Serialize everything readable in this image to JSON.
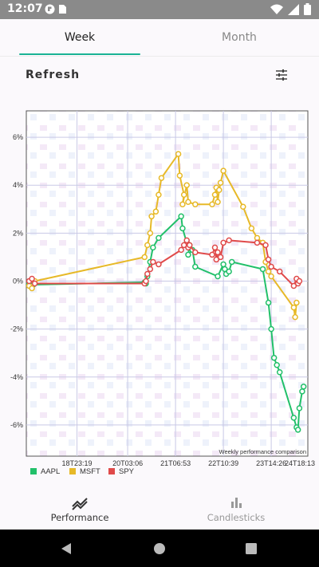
{
  "status": {
    "time": "12:07",
    "icons": [
      "notification-icon",
      "sim-icon",
      "wifi-icon",
      "signal-icon",
      "battery-icon"
    ]
  },
  "tabs": [
    {
      "label": "Week",
      "selected": true
    },
    {
      "label": "Month",
      "selected": false
    }
  ],
  "toolbar": {
    "refresh_label": "Refresh",
    "filter_icon": "tune-icon"
  },
  "chart_data": {
    "type": "line",
    "title": "",
    "annotation": "Weekly performance comparison",
    "xlabel": "",
    "ylabel": "",
    "y_ticks": [
      "6%",
      "4%",
      "2%",
      "0%",
      "-2%",
      "-4%",
      "-6%"
    ],
    "ylim": [
      -7.3,
      7.1
    ],
    "x_ticks": [
      {
        "label": "18T23:19",
        "t": 0.18
      },
      {
        "label": "20T03:06",
        "t": 0.36
      },
      {
        "label": "21T06:53",
        "t": 0.53
      },
      {
        "label": "22T10:39",
        "t": 0.7
      },
      {
        "label": "23T14:26",
        "t": 0.87
      },
      {
        "label": "24T18:13",
        "t": 1.04
      }
    ],
    "grid": true,
    "legend_position": "bottom-left",
    "series": [
      {
        "name": "AAPL",
        "color": "#22c06a",
        "points": [
          [
            0.01,
            -0.1
          ],
          [
            0.02,
            -0.2
          ],
          [
            0.025,
            -0.15
          ],
          [
            0.42,
            -0.05
          ],
          [
            0.425,
            -0.1
          ],
          [
            0.43,
            0.2
          ],
          [
            0.44,
            0.8
          ],
          [
            0.45,
            1.4
          ],
          [
            0.47,
            1.8
          ],
          [
            0.55,
            2.7
          ],
          [
            0.555,
            2.2
          ],
          [
            0.57,
            1.6
          ],
          [
            0.58,
            1.5
          ],
          [
            0.575,
            1.1
          ],
          [
            0.59,
            1.3
          ],
          [
            0.6,
            0.6
          ],
          [
            0.68,
            0.2
          ],
          [
            0.7,
            0.7
          ],
          [
            0.705,
            0.5
          ],
          [
            0.71,
            0.3
          ],
          [
            0.72,
            0.4
          ],
          [
            0.73,
            0.8
          ],
          [
            0.84,
            0.5
          ],
          [
            0.86,
            -0.9
          ],
          [
            0.87,
            -2.0
          ],
          [
            0.88,
            -3.2
          ],
          [
            0.89,
            -3.5
          ],
          [
            0.9,
            -3.8
          ],
          [
            0.95,
            -5.7
          ],
          [
            0.96,
            -6.1
          ],
          [
            0.965,
            -6.2
          ],
          [
            0.97,
            -5.3
          ],
          [
            0.98,
            -4.6
          ],
          [
            0.985,
            -4.4
          ]
        ]
      },
      {
        "name": "MSFT",
        "color": "#e7b928",
        "points": [
          [
            0.01,
            -0.2
          ],
          [
            0.02,
            -0.3
          ],
          [
            0.03,
            0.0
          ],
          [
            0.42,
            1.0
          ],
          [
            0.43,
            1.5
          ],
          [
            0.44,
            2.0
          ],
          [
            0.445,
            2.7
          ],
          [
            0.46,
            2.9
          ],
          [
            0.47,
            3.6
          ],
          [
            0.48,
            4.3
          ],
          [
            0.54,
            5.3
          ],
          [
            0.545,
            4.4
          ],
          [
            0.56,
            3.6
          ],
          [
            0.555,
            3.2
          ],
          [
            0.57,
            4.0
          ],
          [
            0.575,
            3.3
          ],
          [
            0.6,
            3.2
          ],
          [
            0.66,
            3.2
          ],
          [
            0.67,
            3.6
          ],
          [
            0.675,
            3.9
          ],
          [
            0.68,
            3.3
          ],
          [
            0.685,
            3.8
          ],
          [
            0.69,
            4.1
          ],
          [
            0.7,
            4.6
          ],
          [
            0.77,
            3.1
          ],
          [
            0.8,
            2.2
          ],
          [
            0.82,
            1.8
          ],
          [
            0.84,
            1.6
          ],
          [
            0.85,
            0.8
          ],
          [
            0.86,
            0.4
          ],
          [
            0.87,
            0.2
          ],
          [
            0.95,
            -1.1
          ],
          [
            0.955,
            -1.5
          ],
          [
            0.96,
            -0.9
          ]
        ]
      },
      {
        "name": "SPY",
        "color": "#e04a4a",
        "points": [
          [
            0.01,
            0.0
          ],
          [
            0.02,
            0.1
          ],
          [
            0.03,
            -0.1
          ],
          [
            0.42,
            -0.1
          ],
          [
            0.425,
            0.0
          ],
          [
            0.43,
            0.3
          ],
          [
            0.44,
            0.5
          ],
          [
            0.45,
            0.8
          ],
          [
            0.47,
            0.7
          ],
          [
            0.55,
            1.3
          ],
          [
            0.56,
            1.5
          ],
          [
            0.57,
            1.7
          ],
          [
            0.575,
            1.4
          ],
          [
            0.58,
            1.5
          ],
          [
            0.6,
            1.2
          ],
          [
            0.66,
            1.1
          ],
          [
            0.67,
            1.4
          ],
          [
            0.675,
            0.9
          ],
          [
            0.68,
            1.2
          ],
          [
            0.69,
            1.0
          ],
          [
            0.7,
            1.6
          ],
          [
            0.72,
            1.7
          ],
          [
            0.82,
            1.6
          ],
          [
            0.85,
            1.5
          ],
          [
            0.86,
            0.9
          ],
          [
            0.87,
            0.6
          ],
          [
            0.9,
            0.4
          ],
          [
            0.95,
            -0.2
          ],
          [
            0.96,
            0.1
          ],
          [
            0.965,
            -0.1
          ],
          [
            0.97,
            0.0
          ]
        ]
      }
    ]
  },
  "bottom_nav": [
    {
      "label": "Performance",
      "icon": "trending-icon",
      "selected": true
    },
    {
      "label": "Candlesticks",
      "icon": "bar-chart-icon",
      "selected": false
    }
  ],
  "system_nav": [
    "back-icon",
    "home-icon",
    "recents-icon"
  ]
}
